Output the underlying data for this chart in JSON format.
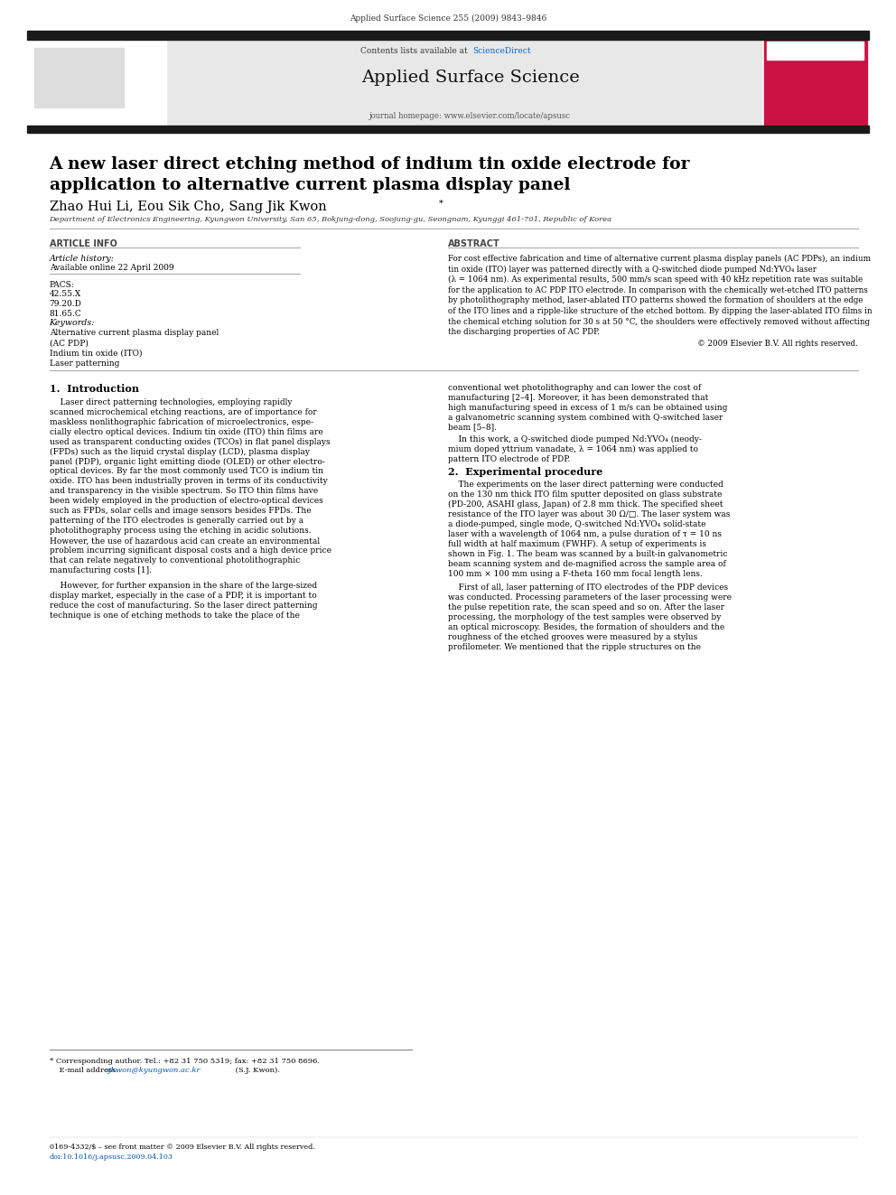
{
  "page_width": 9.92,
  "page_height": 13.23,
  "bg_color": "#ffffff",
  "header_journal_ref": "Applied Surface Science 255 (2009) 9843–9846",
  "header_bar_color": "#1a1a1a",
  "journal_name": "Applied Surface Science",
  "contents_line": "Contents lists available at ScienceDirect",
  "sciencedirect_color": "#0066cc",
  "journal_url": "journal homepage: www.elsevier.com/locate/apsusc",
  "header_bg": "#e8e8e8",
  "paper_title": "A new laser direct etching method of indium tin oxide electrode for\napplication to alternative current plasma display panel",
  "authors": "Zhao Hui Li, Eou Sik Cho, Sang Jik Kwon *",
  "affiliation": "Department of Electronics Engineering, Kyungwon University, San 65, Bokjung-dong, Soojung-gu, Seongnam, Kyunggi 461-701, Republic of Korea",
  "article_info_label": "ARTICLE INFO",
  "abstract_label": "ABSTRACT",
  "article_history_label": "Article history:",
  "available_online": "Available online 22 April 2009",
  "pacs_label": "PACS:",
  "pacs_values": [
    "42.55.X",
    "79.20.D",
    "81.65.C"
  ],
  "keywords_label": "Keywords:",
  "keywords": [
    "Alternative current plasma display panel",
    "(AC PDP)",
    "Indium tin oxide (ITO)",
    "Laser patterning"
  ],
  "abstract_text": "For cost effective fabrication and time of alternative current plasma display panels (AC PDPs), an indium tin oxide (ITO) layer was patterned directly with a Q-switched diode pumped Nd:YVO₄ laser (λ = 1064 nm). As experimental results, 500 mm/s scan speed with 40 kHz repetition rate was suitable for the application to AC PDP ITO electrode. In comparison with the chemically wet-etched ITO patterns by photolithography method, laser-ablated ITO patterns showed the formation of shoulders at the edge of the ITO lines and a ripple-like structure of the etched bottom. By dipping the laser-ablated ITO films in the chemical etching solution for 30 s at 50 °C, the shoulders were effectively removed without affecting the discharging properties of AC PDP.",
  "elsevier_rights": "© 2009 Elsevier B.V. All rights reserved.",
  "intro_heading": "1.  Introduction",
  "intro_text1": "    Laser direct patterning technologies, employing rapidly scanned microchemical etching reactions, are of importance for maskless nonlithographic fabrication of microelectronics, especially electro optical devices. Indium tin oxide (ITO) thin films are used as transparent conducting oxides (TCOs) in flat panel displays (FPDs) such as the liquid crystal display (LCD), plasma display panel (PDP), organic light emitting diode (OLED) or other electro-optical devices.",
  "intro_text2": "    However, for further expansion in the share of the large-sized display market, especially in the case of a PDP, it is important to reduce the cost of manufacturing. So the laser direct patterning technique is one of etching methods to take the place of the",
  "right_col_text1": "conventional wet photolithography and can lower the cost of manufacturing [2–4]. Moreover, it has been demonstrated that high manufacturing speed in excess of 1 m/s can be obtained using a galvanometric scanning system combined with Q-switched laser beam [5–8].",
  "right_col_text2": "    In this work, a Q-switched diode pumped Nd:YVO₄ (neodymium doped yttrium vanadate, λ = 1064 nm) was applied to pattern ITO electrode of PDP.",
  "exp_heading": "2.  Experimental procedure",
  "exp_text": "    The experiments on the laser direct patterning were conducted on the 130 nm thick ITO film sputter deposited on glass substrate (PD-200, ASAHI glass, Japan) of 2.8 mm thick.",
  "footnote_star": "* Corresponding author. Tel.: +82 31 750 5319; fax: +82 31 750 8696.",
  "footnote_email_pre": "    E-mail address: ",
  "footnote_email_link": "sjkwon@kyungwon.ac.kr",
  "footnote_email_post": " (S.J. Kwon).",
  "footnote_bottom": "0169-4332/$ – see front matter © 2009 Elsevier B.V. All rights reserved.",
  "footnote_doi": "doi:10.1016/j.apsusc.2009.04.103",
  "link_color": "#0055aa"
}
